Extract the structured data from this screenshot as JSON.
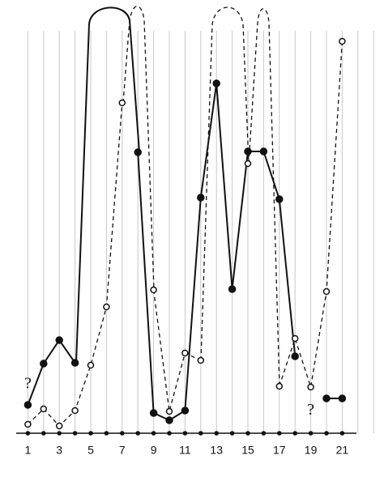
{
  "chart_data": {
    "type": "line",
    "x": [
      1,
      2,
      3,
      4,
      5,
      6,
      7,
      8,
      9,
      10,
      11,
      12,
      13,
      14,
      15,
      16,
      17,
      18,
      19,
      20,
      21
    ],
    "xlim": [
      0,
      23.5
    ],
    "xticks": [
      1,
      3,
      5,
      7,
      9,
      11,
      13,
      15,
      17,
      19,
      21
    ],
    "ylim": [
      0,
      100
    ],
    "grid": true,
    "series": [
      {
        "color": "#111",
        "style": "solid",
        "marker": "filled",
        "values": [
          7,
          17.2,
          23,
          17.4,
          null,
          null,
          null,
          69.4,
          5,
          3.2,
          5.6,
          58.2,
          86.4,
          35.6,
          69.6,
          69.6,
          57.8,
          19,
          null,
          8.6,
          8.6
        ]
      },
      {
        "color": "#111",
        "style": "dashed",
        "marker": "open",
        "values": [
          2.2,
          6,
          1.8,
          5.6,
          16.8,
          31.2,
          81.6,
          null,
          35.4,
          5.4,
          19.8,
          18,
          null,
          null,
          66.6,
          null,
          11.6,
          23.4,
          11.4,
          35,
          96.8
        ]
      }
    ],
    "annotations": [
      {
        "text": "?",
        "x": 1,
        "y": 12
      },
      {
        "text": "?",
        "x": 19,
        "y": 5.5
      }
    ]
  }
}
